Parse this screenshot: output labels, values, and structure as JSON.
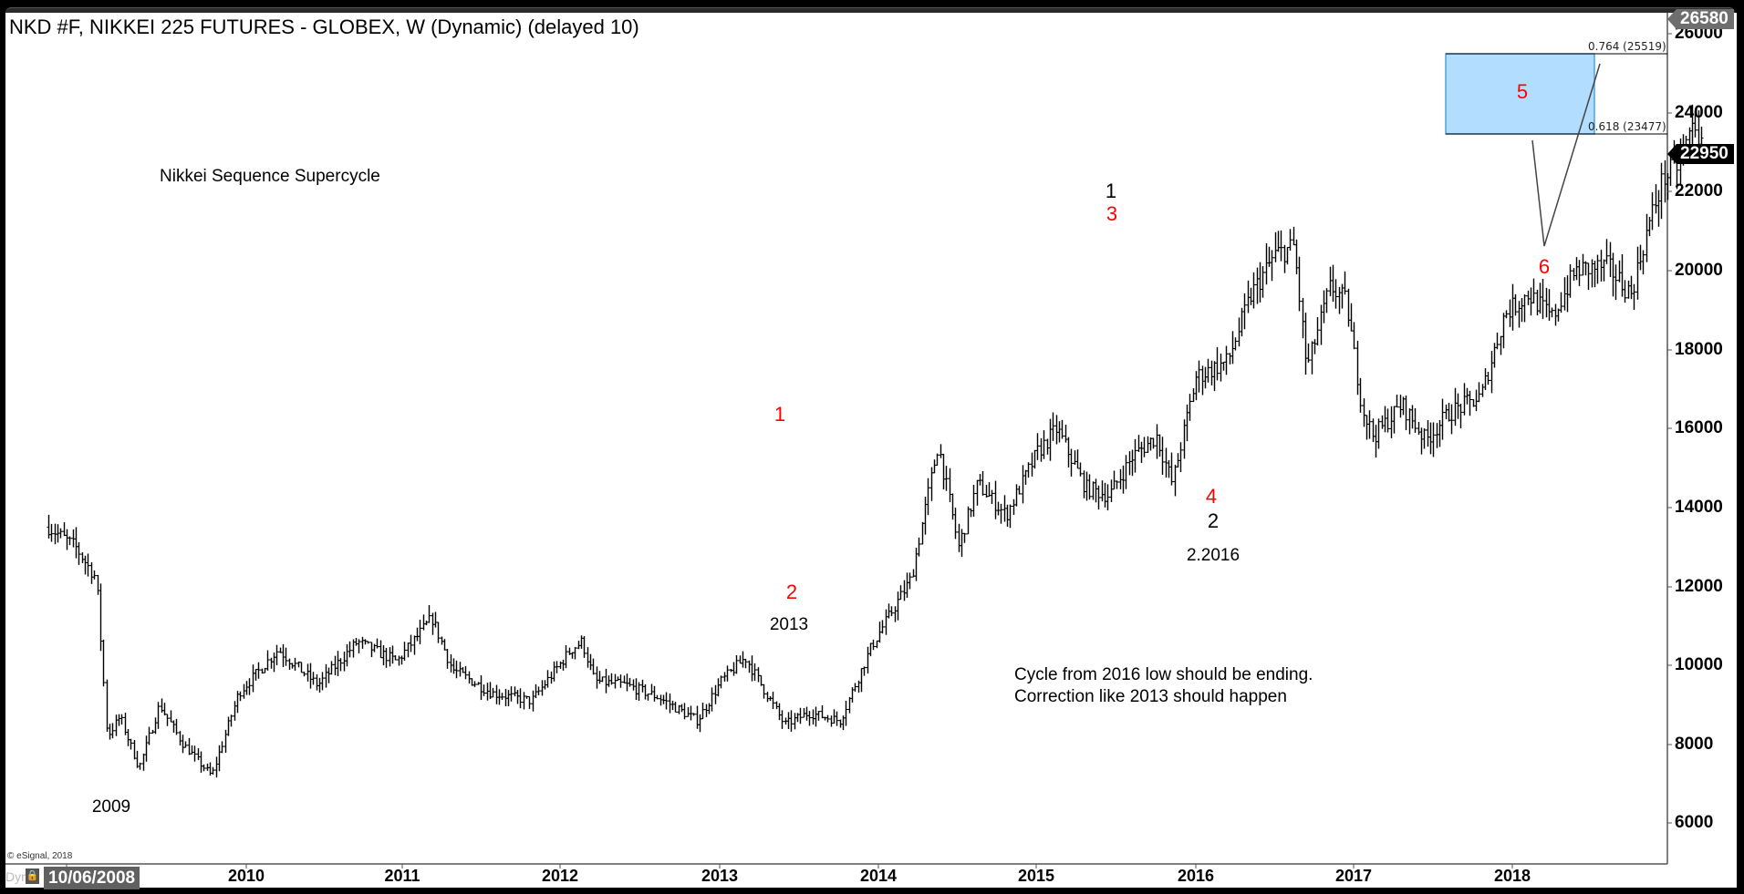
{
  "header": {
    "title": "NKD #F, NIKKEI 225 FUTURES - GLOBEX, W (Dynamic) (delayed 10)"
  },
  "footer": {
    "copyright": "© eSignal, 2018",
    "dyn_label": "Dyn",
    "lock_icon": "lock-icon",
    "cursor_date": "10/06/2008"
  },
  "price_axis": {
    "high_tag": "26580",
    "last_tag": "22950",
    "ticks": [
      "26000",
      "24000",
      "22000",
      "20000",
      "18000",
      "16000",
      "14000",
      "12000",
      "10000",
      "8000",
      "6000"
    ]
  },
  "time_axis": {
    "ticks": [
      "2010",
      "2011",
      "2012",
      "2013",
      "2014",
      "2015",
      "2016",
      "2017",
      "2018"
    ]
  },
  "annotations": {
    "chart_label": "Nikkei Sequence Supercycle",
    "note_line1": "Cycle from 2016 low should be ending.",
    "note_line2": "Correction like 2013 should happen",
    "label_2009": "2009",
    "label_2013": "2013",
    "label_2_2016": "2.2016",
    "wave_red_1": "1",
    "wave_red_2": "2",
    "wave_black_1": "1",
    "wave_red_3": "3",
    "wave_red_4": "4",
    "wave_black_2": "2",
    "wave_red_5": "5",
    "wave_red_6": "6",
    "fib_upper": "0.764 (25519)",
    "fib_lower": "0.618 (23477)"
  },
  "colors": {
    "wave_red": "#ff0000",
    "fib_box": "#b3ddff",
    "fib_box_border": "#4aa3e0",
    "bars": "#000000"
  },
  "chart_data": {
    "type": "ohlc-bar",
    "title": "NKD #F, NIKKEI 225 FUTURES - GLOBEX, W (Dynamic) (delayed 10)",
    "xlabel": "",
    "ylabel": "",
    "ylim": [
      5000,
      26580
    ],
    "x_range": [
      "2008-10",
      "2018-08"
    ],
    "interval": "weekly",
    "grid": false,
    "price_ticks": [
      6000,
      8000,
      10000,
      12000,
      14000,
      16000,
      18000,
      20000,
      22000,
      24000,
      26000
    ],
    "last_price": 22950,
    "high_marker": 26580,
    "anchor_path": [
      {
        "t": 2008.75,
        "p": 13500
      },
      {
        "t": 2008.92,
        "p": 13000
      },
      {
        "t": 2009.05,
        "p": 12200
      },
      {
        "t": 2009.12,
        "p": 8200
      },
      {
        "t": 2009.2,
        "p": 8700
      },
      {
        "t": 2009.32,
        "p": 7400
      },
      {
        "t": 2009.45,
        "p": 9000
      },
      {
        "t": 2009.6,
        "p": 8000
      },
      {
        "t": 2009.78,
        "p": 7200
      },
      {
        "t": 2009.95,
        "p": 9300
      },
      {
        "t": 2010.2,
        "p": 10400
      },
      {
        "t": 2010.45,
        "p": 9500
      },
      {
        "t": 2010.7,
        "p": 10600
      },
      {
        "t": 2010.95,
        "p": 10100
      },
      {
        "t": 2011.17,
        "p": 11200
      },
      {
        "t": 2011.3,
        "p": 9900
      },
      {
        "t": 2011.55,
        "p": 9300
      },
      {
        "t": 2011.8,
        "p": 9100
      },
      {
        "t": 2012.05,
        "p": 10400
      },
      {
        "t": 2012.12,
        "p": 10600
      },
      {
        "t": 2012.2,
        "p": 9600
      },
      {
        "t": 2012.4,
        "p": 9500
      },
      {
        "t": 2012.6,
        "p": 9200
      },
      {
        "t": 2012.85,
        "p": 8600
      },
      {
        "t": 2013.0,
        "p": 9600
      },
      {
        "t": 2013.15,
        "p": 10200
      },
      {
        "t": 2013.4,
        "p": 8500
      },
      {
        "t": 2013.55,
        "p": 8800
      },
      {
        "t": 2013.75,
        "p": 8600
      },
      {
        "t": 2013.95,
        "p": 10500
      },
      {
        "t": 2014.2,
        "p": 12200
      },
      {
        "t": 2014.37,
        "p": 15600
      },
      {
        "t": 2014.5,
        "p": 13000
      },
      {
        "t": 2014.62,
        "p": 14600
      },
      {
        "t": 2014.8,
        "p": 13800
      },
      {
        "t": 2015.0,
        "p": 15400
      },
      {
        "t": 2015.12,
        "p": 16000
      },
      {
        "t": 2015.3,
        "p": 14500
      },
      {
        "t": 2015.45,
        "p": 14300
      },
      {
        "t": 2015.6,
        "p": 15300
      },
      {
        "t": 2015.75,
        "p": 15800
      },
      {
        "t": 2015.85,
        "p": 14600
      },
      {
        "t": 2016.0,
        "p": 17300
      },
      {
        "t": 2016.2,
        "p": 17700
      },
      {
        "t": 2016.35,
        "p": 19400
      },
      {
        "t": 2016.5,
        "p": 20400
      },
      {
        "t": 2016.62,
        "p": 20600
      },
      {
        "t": 2016.7,
        "p": 17500
      },
      {
        "t": 2016.85,
        "p": 19600
      },
      {
        "t": 2016.95,
        "p": 19200
      },
      {
        "t": 2017.05,
        "p": 16500
      },
      {
        "t": 2017.12,
        "p": 15800
      },
      {
        "t": 2017.3,
        "p": 16600
      },
      {
        "t": 2017.45,
        "p": 15700
      },
      {
        "t": 2017.6,
        "p": 16400
      },
      {
        "t": 2017.8,
        "p": 16800
      },
      {
        "t": 2017.95,
        "p": 18900
      },
      {
        "t": 2018.1,
        "p": 19400
      },
      {
        "t": 2018.25,
        "p": 18800
      },
      {
        "t": 2018.4,
        "p": 20000
      },
      {
        "t": 2018.6,
        "p": 20100
      },
      {
        "t": 2018.75,
        "p": 19400
      },
      {
        "t": 2018.85,
        "p": 21000
      },
      {
        "t": 2018.95,
        "p": 22300
      },
      {
        "t": 2019.05,
        "p": 22700
      },
      {
        "t": 2019.15,
        "p": 23800
      },
      {
        "t": 2019.2,
        "p": 22950
      }
    ],
    "note": "Anchor 't' values are in plot year units where the 2010 tick marks Jan 2010 (labels offset by one year due to weekly scale)",
    "wave_labels": [
      {
        "label": "1",
        "color": "red",
        "date": "2013-05",
        "price": 16000
      },
      {
        "label": "2",
        "color": "red",
        "date": "2013-06",
        "price": 12300
      },
      {
        "label": "1",
        "color": "black",
        "date": "2015-06",
        "price": 21000
      },
      {
        "label": "3",
        "color": "red",
        "date": "2015-06",
        "price": 21000
      },
      {
        "label": "4",
        "color": "red",
        "date": "2016-02",
        "price": 14800
      },
      {
        "label": "2",
        "color": "black",
        "date": "2016-02",
        "price": 14800
      },
      {
        "label": "5",
        "color": "red",
        "date": "2018-01",
        "price": 24200
      },
      {
        "label": "6",
        "color": "red",
        "date": "2018-03",
        "price": 20700
      }
    ],
    "fib_zone": {
      "lower": 23477,
      "upper": 25519,
      "lower_ratio": 0.618,
      "upper_ratio": 0.764
    },
    "projection_path": [
      {
        "date": "2018-02",
        "price": 23200
      },
      {
        "date": "2018-03",
        "price": 20700
      },
      {
        "date": "2018-07",
        "price": 25300
      }
    ]
  }
}
